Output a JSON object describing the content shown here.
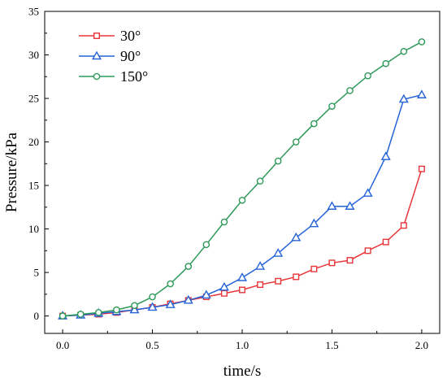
{
  "chart_data": {
    "type": "line",
    "xlabel": "time/s",
    "ylabel": "Pressure/kPa",
    "xlim": [
      -0.1,
      2.1
    ],
    "ylim": [
      -2,
      35
    ],
    "xticks": [
      0.0,
      0.5,
      1.0,
      1.5,
      2.0
    ],
    "xtick_labels": [
      "0.0",
      "0.5",
      "1.0",
      "1.5",
      "2.0"
    ],
    "yticks": [
      0,
      5,
      10,
      15,
      20,
      25,
      30,
      35
    ],
    "ytick_labels": [
      "0",
      "5",
      "10",
      "15",
      "20",
      "25",
      "30",
      "35"
    ],
    "grid": false,
    "legend_position": "top-left",
    "x": [
      0.0,
      0.1,
      0.2,
      0.3,
      0.4,
      0.5,
      0.6,
      0.7,
      0.8,
      0.9,
      1.0,
      1.1,
      1.2,
      1.3,
      1.4,
      1.5,
      1.6,
      1.7,
      1.8,
      1.9,
      2.0
    ],
    "series": [
      {
        "name": "30°",
        "color": "#e8363a",
        "marker": "square",
        "values": [
          0.0,
          0.1,
          0.2,
          0.4,
          0.7,
          1.0,
          1.4,
          1.8,
          2.2,
          2.6,
          3.0,
          3.6,
          4.0,
          4.5,
          5.4,
          6.1,
          6.4,
          7.5,
          8.5,
          10.4,
          16.9
        ]
      },
      {
        "name": "90°",
        "color": "#2563d9",
        "marker": "triangle",
        "values": [
          0.0,
          0.1,
          0.3,
          0.5,
          0.7,
          1.0,
          1.3,
          1.8,
          2.4,
          3.3,
          4.4,
          5.7,
          7.2,
          9.0,
          10.6,
          12.6,
          12.6,
          14.1,
          18.3,
          24.9,
          25.4
        ]
      },
      {
        "name": "150°",
        "color": "#2e9a5a",
        "marker": "circle",
        "values": [
          0.0,
          0.2,
          0.4,
          0.7,
          1.2,
          2.2,
          3.7,
          5.7,
          8.2,
          10.8,
          13.3,
          15.5,
          17.8,
          20.0,
          22.1,
          24.1,
          25.9,
          27.6,
          29.0,
          30.4,
          31.5
        ]
      }
    ]
  }
}
